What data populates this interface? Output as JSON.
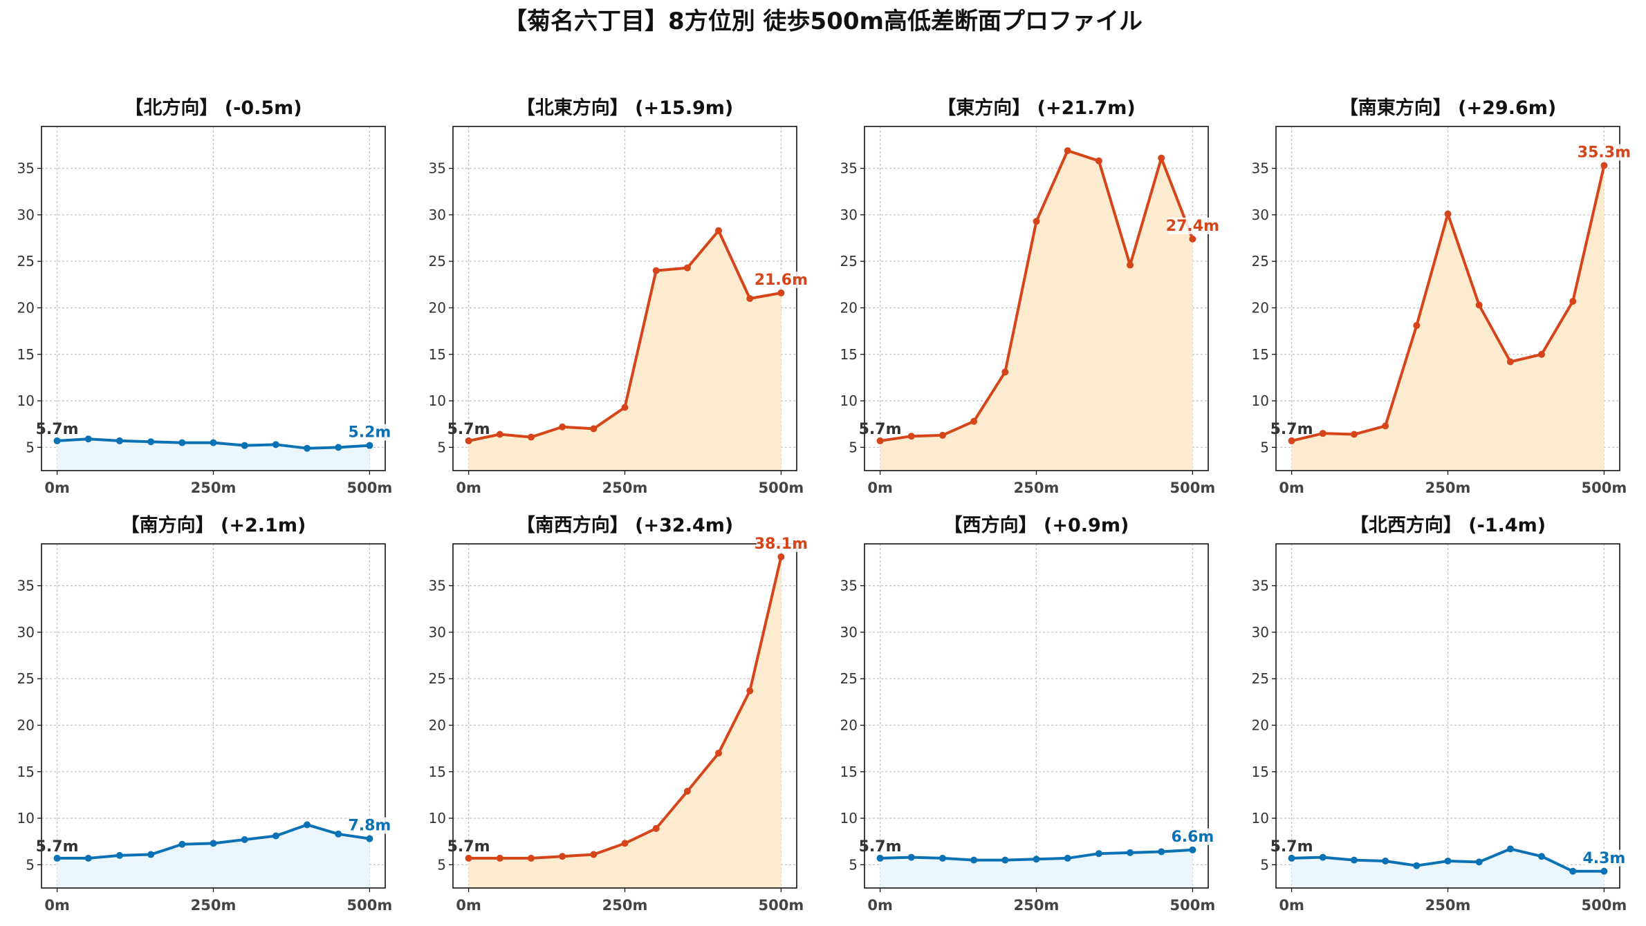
{
  "title": "【菊名六丁目】8方位別 徒歩500m高低差断面プロファイル",
  "colors": {
    "up_line": "#d6441a",
    "up_fill": "#fdebd0",
    "flat_line": "#0a72b4",
    "flat_fill": "#eaf6fc"
  },
  "chart_data": [
    {
      "type": "area",
      "title": "【北方向】 (-0.5m)",
      "trend": "flat",
      "x": [
        0,
        50,
        100,
        150,
        200,
        250,
        300,
        350,
        400,
        450,
        500
      ],
      "values": [
        5.7,
        5.9,
        5.7,
        5.6,
        5.5,
        5.5,
        5.2,
        5.3,
        4.9,
        5.0,
        5.2
      ],
      "x_ticks": [
        "0m",
        "250m",
        "500m"
      ],
      "y_ticks": [
        5,
        10,
        15,
        20,
        25,
        30,
        35
      ],
      "ylim": [
        2.5,
        39.5
      ],
      "start_label": "5.7m",
      "end_label": "5.2m",
      "grid": true
    },
    {
      "type": "area",
      "title": "【北東方向】 (+15.9m)",
      "trend": "up",
      "x": [
        0,
        50,
        100,
        150,
        200,
        250,
        300,
        350,
        400,
        450,
        500
      ],
      "values": [
        5.7,
        6.4,
        6.1,
        7.2,
        7.0,
        9.3,
        24.0,
        24.3,
        28.3,
        21.0,
        21.6
      ],
      "x_ticks": [
        "0m",
        "250m",
        "500m"
      ],
      "y_ticks": [
        5,
        10,
        15,
        20,
        25,
        30,
        35
      ],
      "ylim": [
        2.5,
        39.5
      ],
      "start_label": "5.7m",
      "end_label": "21.6m",
      "grid": true
    },
    {
      "type": "area",
      "title": "【東方向】 (+21.7m)",
      "trend": "up",
      "x": [
        0,
        50,
        100,
        150,
        200,
        250,
        300,
        350,
        400,
        450,
        500
      ],
      "values": [
        5.7,
        6.2,
        6.3,
        7.8,
        13.1,
        29.3,
        36.9,
        35.8,
        24.6,
        36.1,
        27.4
      ],
      "x_ticks": [
        "0m",
        "250m",
        "500m"
      ],
      "y_ticks": [
        5,
        10,
        15,
        20,
        25,
        30,
        35
      ],
      "ylim": [
        2.5,
        39.5
      ],
      "start_label": "5.7m",
      "end_label": "27.4m",
      "grid": true
    },
    {
      "type": "area",
      "title": "【南東方向】 (+29.6m)",
      "trend": "up",
      "x": [
        0,
        50,
        100,
        150,
        200,
        250,
        300,
        350,
        400,
        450,
        500
      ],
      "values": [
        5.7,
        6.5,
        6.4,
        7.3,
        18.1,
        30.1,
        20.3,
        14.2,
        15.0,
        20.7,
        35.3
      ],
      "x_ticks": [
        "0m",
        "250m",
        "500m"
      ],
      "y_ticks": [
        5,
        10,
        15,
        20,
        25,
        30,
        35
      ],
      "ylim": [
        2.5,
        39.5
      ],
      "start_label": "5.7m",
      "end_label": "35.3m",
      "grid": true
    },
    {
      "type": "area",
      "title": "【南方向】 (+2.1m)",
      "trend": "flat",
      "x": [
        0,
        50,
        100,
        150,
        200,
        250,
        300,
        350,
        400,
        450,
        500
      ],
      "values": [
        5.7,
        5.7,
        6.0,
        6.1,
        7.2,
        7.3,
        7.7,
        8.1,
        9.3,
        8.3,
        7.8
      ],
      "x_ticks": [
        "0m",
        "250m",
        "500m"
      ],
      "y_ticks": [
        5,
        10,
        15,
        20,
        25,
        30,
        35
      ],
      "ylim": [
        2.5,
        39.5
      ],
      "start_label": "5.7m",
      "end_label": "7.8m",
      "grid": true
    },
    {
      "type": "area",
      "title": "【南西方向】 (+32.4m)",
      "trend": "up",
      "x": [
        0,
        50,
        100,
        150,
        200,
        250,
        300,
        350,
        400,
        450,
        500
      ],
      "values": [
        5.7,
        5.7,
        5.7,
        5.9,
        6.1,
        7.3,
        8.9,
        12.9,
        17.0,
        23.7,
        38.1
      ],
      "x_ticks": [
        "0m",
        "250m",
        "500m"
      ],
      "y_ticks": [
        5,
        10,
        15,
        20,
        25,
        30,
        35
      ],
      "ylim": [
        2.5,
        39.5
      ],
      "start_label": "5.7m",
      "end_label": "38.1m",
      "grid": true
    },
    {
      "type": "area",
      "title": "【西方向】 (+0.9m)",
      "trend": "flat",
      "x": [
        0,
        50,
        100,
        150,
        200,
        250,
        300,
        350,
        400,
        450,
        500
      ],
      "values": [
        5.7,
        5.8,
        5.7,
        5.5,
        5.5,
        5.6,
        5.7,
        6.2,
        6.3,
        6.4,
        6.6
      ],
      "x_ticks": [
        "0m",
        "250m",
        "500m"
      ],
      "y_ticks": [
        5,
        10,
        15,
        20,
        25,
        30,
        35
      ],
      "ylim": [
        2.5,
        39.5
      ],
      "start_label": "5.7m",
      "end_label": "6.6m",
      "grid": true
    },
    {
      "type": "area",
      "title": "【北西方向】 (-1.4m)",
      "trend": "flat",
      "x": [
        0,
        50,
        100,
        150,
        200,
        250,
        300,
        350,
        400,
        450,
        500
      ],
      "values": [
        5.7,
        5.8,
        5.5,
        5.4,
        4.9,
        5.4,
        5.3,
        6.7,
        5.9,
        4.3,
        4.3
      ],
      "x_ticks": [
        "0m",
        "250m",
        "500m"
      ],
      "y_ticks": [
        5,
        10,
        15,
        20,
        25,
        30,
        35
      ],
      "ylim": [
        2.5,
        39.5
      ],
      "start_label": "5.7m",
      "end_label": "4.3m",
      "grid": true
    }
  ]
}
